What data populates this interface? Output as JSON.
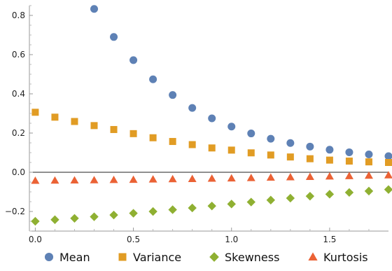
{
  "chart_data": {
    "type": "scatter",
    "title": "",
    "xlabel": "",
    "ylabel": "",
    "xlim": [
      -0.03,
      1.8
    ],
    "ylim": [
      -0.3,
      0.85
    ],
    "x_ticks": [
      0.0,
      0.5,
      1.0,
      1.5
    ],
    "x_tick_labels": [
      "0.0",
      "0.5",
      "1.0",
      "1.5"
    ],
    "y_ticks": [
      -0.2,
      0.0,
      0.2,
      0.4,
      0.6,
      0.8
    ],
    "y_tick_labels": [
      "−0.2",
      "0.0",
      "0.2",
      "0.4",
      "0.6",
      "0.8"
    ],
    "zero_line": true,
    "grid": false,
    "legend_position": "bottom",
    "series": [
      {
        "name": "Mean",
        "marker": "circle",
        "color": "#5E81B5",
        "x": [
          0.3,
          0.4,
          0.5,
          0.6,
          0.7,
          0.8,
          0.9,
          1.0,
          1.1,
          1.2,
          1.3,
          1.4,
          1.5,
          1.6,
          1.7,
          1.8
        ],
        "y": [
          0.833,
          0.69,
          0.572,
          0.474,
          0.394,
          0.328,
          0.275,
          0.233,
          0.198,
          0.171,
          0.149,
          0.131,
          0.115,
          0.102,
          0.091,
          0.082
        ]
      },
      {
        "name": "Variance",
        "marker": "square",
        "color": "#E19C24",
        "x": [
          0.0,
          0.1,
          0.2,
          0.3,
          0.4,
          0.5,
          0.6,
          0.7,
          0.8,
          0.9,
          1.0,
          1.1,
          1.2,
          1.3,
          1.4,
          1.5,
          1.6,
          1.7,
          1.8
        ],
        "y": [
          0.306,
          0.281,
          0.259,
          0.238,
          0.218,
          0.197,
          0.176,
          0.157,
          0.141,
          0.124,
          0.113,
          0.099,
          0.088,
          0.078,
          0.069,
          0.062,
          0.057,
          0.053,
          0.05
        ]
      },
      {
        "name": "Skewness",
        "marker": "diamond",
        "color": "#8FB032",
        "x": [
          0.0,
          0.1,
          0.2,
          0.3,
          0.4,
          0.5,
          0.6,
          0.7,
          0.8,
          0.9,
          1.0,
          1.1,
          1.2,
          1.3,
          1.4,
          1.5,
          1.6,
          1.7,
          1.8
        ],
        "y": [
          -0.25,
          -0.242,
          -0.235,
          -0.227,
          -0.218,
          -0.209,
          -0.2,
          -0.191,
          -0.182,
          -0.172,
          -0.162,
          -0.152,
          -0.142,
          -0.132,
          -0.122,
          -0.112,
          -0.103,
          -0.096,
          -0.088
        ]
      },
      {
        "name": "Kurtosis",
        "marker": "triangle",
        "color": "#EB6235",
        "x": [
          0.0,
          0.1,
          0.2,
          0.3,
          0.4,
          0.5,
          0.6,
          0.7,
          0.8,
          0.9,
          1.0,
          1.1,
          1.2,
          1.3,
          1.4,
          1.5,
          1.6,
          1.7,
          1.8
        ],
        "y": [
          -0.043,
          -0.042,
          -0.041,
          -0.04,
          -0.039,
          -0.038,
          -0.036,
          -0.035,
          -0.034,
          -0.032,
          -0.031,
          -0.029,
          -0.027,
          -0.025,
          -0.023,
          -0.021,
          -0.019,
          -0.017,
          -0.015
        ]
      }
    ]
  }
}
